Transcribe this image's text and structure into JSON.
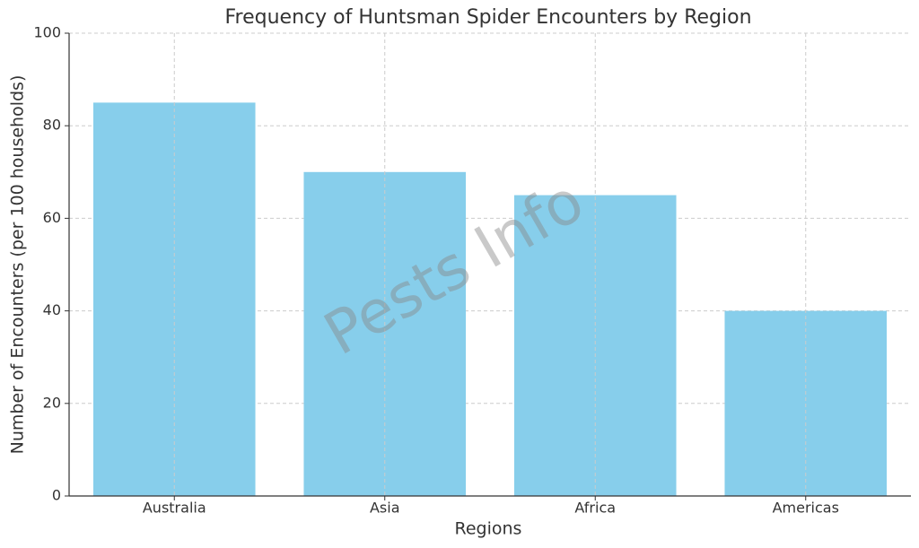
{
  "chart_data": {
    "type": "bar",
    "title": "Frequency of Huntsman Spider Encounters by Region",
    "x_label": "Regions",
    "y_label": "Number of Encounters (per 100 households)",
    "watermark": "Pests Info",
    "categories": [
      "Australia",
      "Asia",
      "Africa",
      "Americas"
    ],
    "values": [
      85,
      70,
      65,
      40
    ],
    "color": "#87ceeb",
    "ylim": [
      0,
      100
    ],
    "yticks": [
      0,
      20,
      40,
      60,
      80,
      100
    ],
    "grid": true
  }
}
